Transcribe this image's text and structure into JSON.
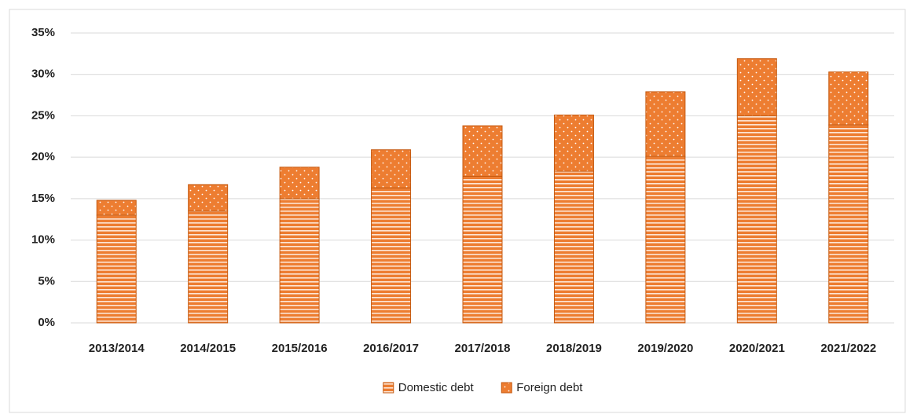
{
  "chart_data": {
    "type": "stacked_bar",
    "categories": [
      "2013/2014",
      "2014/2015",
      "2015/2016",
      "2016/2017",
      "2017/2018",
      "2018/2019",
      "2019/2020",
      "2020/2021",
      "2021/2022"
    ],
    "series": [
      {
        "name": "Domestic debt",
        "color": "#ed7d31",
        "values": [
          13.0,
          13.5,
          15.0,
          16.3,
          17.7,
          18.3,
          20.1,
          25.0,
          23.9
        ]
      },
      {
        "name": "Foreign debt",
        "color": "#ed7d31",
        "values": [
          1.8,
          3.2,
          3.8,
          4.6,
          6.1,
          6.8,
          7.8,
          6.9,
          6.4
        ]
      }
    ],
    "ylim": [
      0,
      35
    ],
    "yticks": [
      {
        "value": 0,
        "label": "0%"
      },
      {
        "value": 5,
        "label": "5%"
      },
      {
        "value": 10,
        "label": "10%"
      },
      {
        "value": 15,
        "label": "15%"
      },
      {
        "value": 20,
        "label": "20%"
      },
      {
        "value": 25,
        "label": "25%"
      },
      {
        "value": 30,
        "label": "30%"
      },
      {
        "value": 35,
        "label": "35%"
      }
    ],
    "grid": true,
    "legend": "bottom"
  }
}
